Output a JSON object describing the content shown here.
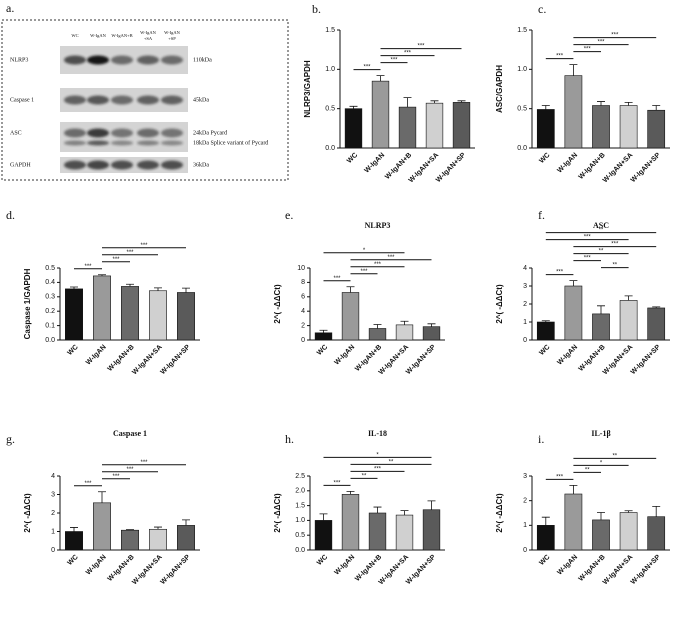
{
  "blot": {
    "panel": "a.",
    "lanes": [
      [
        "WC"
      ],
      [
        "W-IgAN"
      ],
      [
        "W-IgAN+B"
      ],
      [
        "W-IgAN",
        "+SA"
      ],
      [
        "W-IgAN",
        "+SP"
      ]
    ],
    "rows": [
      {
        "name": "NLRP3",
        "sizes": [
          "110kDa"
        ]
      },
      {
        "name": "Caspase 1",
        "sizes": [
          "45kDa"
        ]
      },
      {
        "name": "ASC",
        "sizes": [
          "24kDa Pycard",
          "18kDa Splice variant of Pycard"
        ]
      },
      {
        "name": "GAPDH",
        "sizes": [
          "36kDa"
        ]
      }
    ]
  },
  "chart_data": [
    {
      "type": "bar",
      "panel": "b.",
      "y_label": "NLRP3/GAPDH",
      "categories": [
        "WC",
        "W-IgAN",
        "W-IgAN+B",
        "W-IgAN+SA",
        "W-IgAN+SP"
      ],
      "colors": [
        "#111111",
        "#9a9a9a",
        "#6a6a6a",
        "#d0d0d0",
        "#5a5a5a"
      ],
      "values": [
        0.5,
        0.85,
        0.52,
        0.57,
        0.58
      ],
      "errors": [
        0.03,
        0.07,
        0.12,
        0.03,
        0.02
      ],
      "ylim": [
        0,
        1.5
      ],
      "yticks": [
        {
          "value": 0,
          "label": "0.0"
        },
        0.5,
        {
          "value": 1,
          "label": "1.0"
        },
        1.5
      ],
      "brackets": [
        {
          "pair": [
            "WC",
            "W-IgAN"
          ],
          "label": "***"
        },
        {
          "pair": [
            "W-IgAN",
            "W-IgAN+B"
          ],
          "label": "***"
        },
        {
          "pair": [
            "W-IgAN",
            "W-IgAN+SA"
          ],
          "label": "***"
        },
        {
          "pair": [
            "W-IgAN",
            "W-IgAN+SP"
          ],
          "label": "***"
        }
      ]
    },
    {
      "type": "bar",
      "panel": "c.",
      "y_label": "ASC/GAPDH",
      "categories": [
        "WC",
        "W-IgAN",
        "W-IgAN+B",
        "W-IgAN+SA",
        "W-IgAN+SP"
      ],
      "colors": [
        "#111111",
        "#9a9a9a",
        "#6a6a6a",
        "#d0d0d0",
        "#5a5a5a"
      ],
      "values": [
        0.49,
        0.92,
        0.54,
        0.54,
        0.48
      ],
      "errors": [
        0.05,
        0.14,
        0.05,
        0.04,
        0.06
      ],
      "ylim": [
        0,
        1.5
      ],
      "yticks": [
        {
          "value": 0,
          "label": "0.0"
        },
        0.5,
        {
          "value": 1,
          "label": "1.0"
        },
        1.5
      ],
      "brackets": [
        {
          "pair": [
            "WC",
            "W-IgAN"
          ],
          "label": "***"
        },
        {
          "pair": [
            "W-IgAN",
            "W-IgAN+B"
          ],
          "label": "***"
        },
        {
          "pair": [
            "W-IgAN",
            "W-IgAN+SA"
          ],
          "label": "***"
        },
        {
          "pair": [
            "W-IgAN",
            "W-IgAN+SP"
          ],
          "label": "***"
        }
      ]
    },
    {
      "type": "bar",
      "panel": "d.",
      "y_label": "Caspase 1/GAPDH",
      "categories": [
        "WC",
        "W-IgAN",
        "W-IgAN+B",
        "W-IgAN+SA",
        "W-IgAN+SP"
      ],
      "colors": [
        "#111111",
        "#9a9a9a",
        "#6a6a6a",
        "#d0d0d0",
        "#5a5a5a"
      ],
      "values": [
        0.355,
        0.445,
        0.372,
        0.342,
        0.33
      ],
      "errors": [
        0.013,
        0.008,
        0.015,
        0.02,
        0.03
      ],
      "ylim": [
        0,
        0.5
      ],
      "yticks": [
        {
          "value": 0,
          "label": "0.0"
        },
        0.1,
        0.2,
        0.3,
        0.4,
        0.5
      ],
      "brackets": [
        {
          "pair": [
            "WC",
            "W-IgAN"
          ],
          "label": "***"
        },
        {
          "pair": [
            "W-IgAN",
            "W-IgAN+B"
          ],
          "label": "***"
        },
        {
          "pair": [
            "W-IgAN",
            "W-IgAN+SA"
          ],
          "label": "***"
        },
        {
          "pair": [
            "W-IgAN",
            "W-IgAN+SP"
          ],
          "label": "***"
        }
      ]
    },
    {
      "type": "bar",
      "panel": "e.",
      "title": "NLRP3",
      "y_label": "2^( -ΔΔCt)",
      "categories": [
        "WC",
        "W-IgAN",
        "W-IgAN+B",
        "W-IgAN+SA",
        "W-IgAN+SP"
      ],
      "colors": [
        "#111111",
        "#9a9a9a",
        "#6a6a6a",
        "#d0d0d0",
        "#5a5a5a"
      ],
      "values": [
        1.0,
        6.6,
        1.6,
        2.1,
        1.85
      ],
      "errors": [
        0.35,
        0.8,
        0.55,
        0.5,
        0.4
      ],
      "ylim": [
        0,
        10
      ],
      "yticks": [
        0,
        2,
        4,
        6,
        8,
        10
      ],
      "brackets": [
        {
          "pair": [
            "WC",
            "W-IgAN"
          ],
          "label": "***"
        },
        {
          "pair": [
            "W-IgAN",
            "W-IgAN+B"
          ],
          "label": "***"
        },
        {
          "pair": [
            "W-IgAN",
            "W-IgAN+SA"
          ],
          "label": "***"
        },
        {
          "pair": [
            "W-IgAN",
            "W-IgAN+SP"
          ],
          "label": "***"
        },
        {
          "pair": [
            "WC",
            "W-IgAN+SA"
          ],
          "label": "*"
        }
      ]
    },
    {
      "type": "bar",
      "panel": "f.",
      "title": "ASC",
      "y_label": "2^( -ΔΔCt)",
      "categories": [
        "WC",
        "W-IgAN",
        "W-IgAN+B",
        "W-IgAN+SA",
        "W-IgAN+SP"
      ],
      "colors": [
        "#111111",
        "#9a9a9a",
        "#6a6a6a",
        "#d0d0d0",
        "#5a5a5a"
      ],
      "values": [
        1.0,
        3.0,
        1.45,
        2.2,
        1.78
      ],
      "errors": [
        0.07,
        0.3,
        0.45,
        0.25,
        0.06
      ],
      "ylim": [
        0,
        4
      ],
      "yticks": [
        0,
        1,
        2,
        3,
        4
      ],
      "brackets": [
        {
          "pair": [
            "WC",
            "W-IgAN"
          ],
          "label": "***"
        },
        {
          "pair": [
            "W-IgAN+B",
            "W-IgAN+SA"
          ],
          "label": "**"
        },
        {
          "pair": [
            "W-IgAN",
            "W-IgAN+B"
          ],
          "label": "***"
        },
        {
          "pair": [
            "W-IgAN",
            "W-IgAN+SA"
          ],
          "label": "**"
        },
        {
          "pair": [
            "W-IgAN",
            "W-IgAN+SP"
          ],
          "label": "***"
        },
        {
          "pair": [
            "WC",
            "W-IgAN+SA"
          ],
          "label": "***"
        },
        {
          "pair": [
            "WC",
            "W-IgAN+SP"
          ],
          "label": "**"
        }
      ]
    },
    {
      "type": "bar",
      "panel": "g.",
      "title": "Caspase 1",
      "y_label": "2^( -ΔΔCt)",
      "categories": [
        "WC",
        "W-IgAN",
        "W-IgAN+B",
        "W-IgAN+SA",
        "W-IgAN+SP"
      ],
      "colors": [
        "#111111",
        "#9a9a9a",
        "#6a6a6a",
        "#d0d0d0",
        "#5a5a5a"
      ],
      "values": [
        1.0,
        2.55,
        1.07,
        1.12,
        1.33
      ],
      "errors": [
        0.22,
        0.6,
        0.03,
        0.12,
        0.3
      ],
      "ylim": [
        0,
        4
      ],
      "yticks": [
        0,
        1,
        2,
        3,
        4
      ],
      "brackets": [
        {
          "pair": [
            "WC",
            "W-IgAN"
          ],
          "label": "***"
        },
        {
          "pair": [
            "W-IgAN",
            "W-IgAN+B"
          ],
          "label": "***"
        },
        {
          "pair": [
            "W-IgAN",
            "W-IgAN+SA"
          ],
          "label": "***"
        },
        {
          "pair": [
            "W-IgAN",
            "W-IgAN+SP"
          ],
          "label": "***"
        }
      ]
    },
    {
      "type": "bar",
      "panel": "h.",
      "title": "IL-18",
      "y_label": "2^( -ΔΔCt)",
      "categories": [
        "WC",
        "W-IgAN",
        "W-IgAN+B",
        "W-IgAN+SA",
        "W-IgAN+SP"
      ],
      "colors": [
        "#111111",
        "#9a9a9a",
        "#6a6a6a",
        "#d0d0d0",
        "#5a5a5a"
      ],
      "values": [
        1.0,
        1.88,
        1.25,
        1.18,
        1.36
      ],
      "errors": [
        0.22,
        0.1,
        0.2,
        0.15,
        0.3
      ],
      "ylim": [
        0,
        2.5
      ],
      "yticks": [
        {
          "value": 0,
          "label": "0.0"
        },
        0.5,
        {
          "value": 1,
          "label": "1.0"
        },
        1.5,
        {
          "value": 2,
          "label": "2.0"
        },
        2.5
      ],
      "brackets": [
        {
          "pair": [
            "WC",
            "W-IgAN"
          ],
          "label": "***"
        },
        {
          "pair": [
            "W-IgAN",
            "W-IgAN+B"
          ],
          "label": "**"
        },
        {
          "pair": [
            "W-IgAN",
            "W-IgAN+SA"
          ],
          "label": "***"
        },
        {
          "pair": [
            "W-IgAN",
            "W-IgAN+SP"
          ],
          "label": "**"
        },
        {
          "pair": [
            "WC",
            "W-IgAN+SP"
          ],
          "label": "*"
        }
      ]
    },
    {
      "type": "bar",
      "panel": "i.",
      "title": "IL-1β",
      "y_label": "2^( -ΔΔCt)",
      "categories": [
        "WC",
        "W-IgAN",
        "W-IgAN+B",
        "W-IgAN+SA",
        "W-IgAN+SP"
      ],
      "colors": [
        "#111111",
        "#9a9a9a",
        "#6a6a6a",
        "#d0d0d0",
        "#5a5a5a"
      ],
      "values": [
        1.0,
        2.27,
        1.22,
        1.52,
        1.35
      ],
      "errors": [
        0.33,
        0.35,
        0.3,
        0.07,
        0.42
      ],
      "ylim": [
        0,
        3
      ],
      "yticks": [
        0,
        1,
        2,
        3
      ],
      "brackets": [
        {
          "pair": [
            "WC",
            "W-IgAN"
          ],
          "label": "***"
        },
        {
          "pair": [
            "W-IgAN",
            "W-IgAN+B"
          ],
          "label": "**"
        },
        {
          "pair": [
            "W-IgAN",
            "W-IgAN+SA"
          ],
          "label": "*"
        },
        {
          "pair": [
            "W-IgAN",
            "W-IgAN+SP"
          ],
          "label": "**"
        }
      ]
    }
  ]
}
